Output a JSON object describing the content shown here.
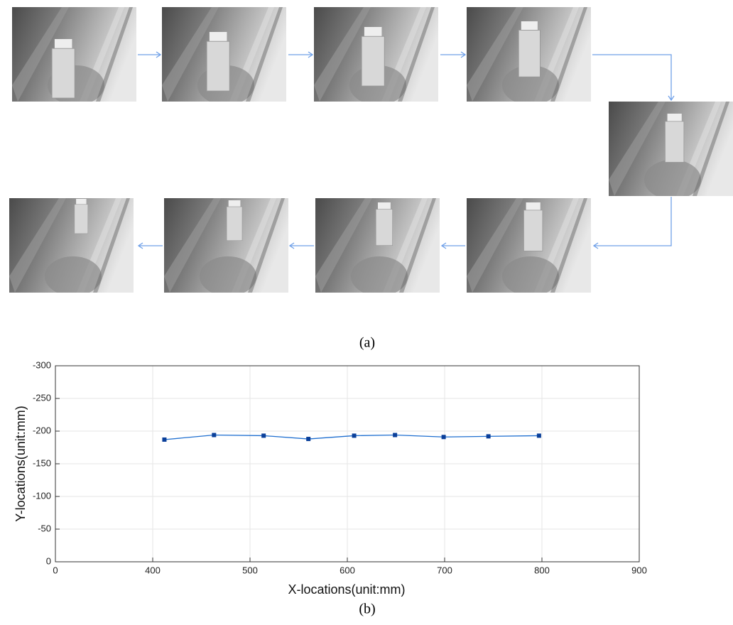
{
  "figure": {
    "panel_a": "(a)",
    "panel_b": "(b)"
  },
  "chart_data": {
    "type": "line",
    "xlabel": "X-locations(unit:mm)",
    "ylabel": "Y-locations(unit:mm)",
    "x": [
      412,
      463,
      514,
      560,
      607,
      649,
      699,
      745,
      797
    ],
    "series": [
      {
        "color": "#1f6fd0",
        "marker_color": "#0a3f9a",
        "values": [
          -187,
          -194,
          -193,
          -188,
          -193,
          -194,
          -191,
          -192,
          -193
        ]
      }
    ],
    "xlim": [
      300,
      900
    ],
    "xticks": [
      {
        "value": 300,
        "label": "0"
      },
      400,
      500,
      600,
      700,
      800,
      900
    ],
    "ylim": [
      0,
      -300
    ],
    "yticks": [
      0,
      -50,
      -100,
      -150,
      -200,
      -250,
      -300
    ],
    "grid": true
  }
}
